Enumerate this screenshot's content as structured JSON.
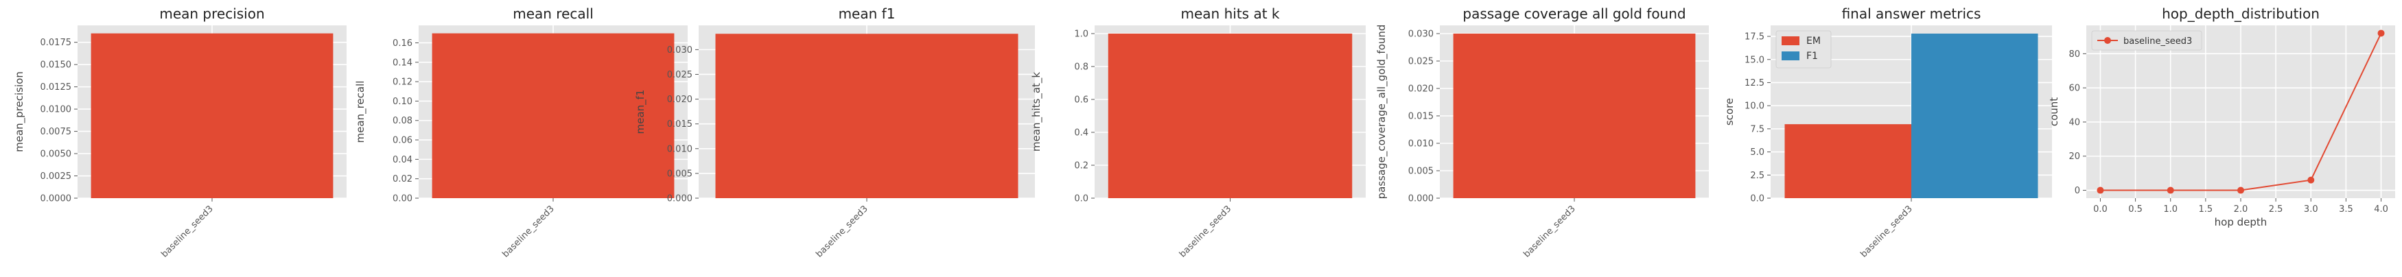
{
  "chart_data": [
    {
      "type": "bar",
      "title": "mean precision",
      "xlabel": "",
      "ylabel": "mean_precision",
      "categories": [
        "baseline_seed3"
      ],
      "values": [
        0.0185
      ],
      "ylim": [
        0,
        0.0194
      ],
      "yticks": [
        0.0,
        0.0025,
        0.005,
        0.0075,
        0.01,
        0.0125,
        0.015,
        0.0175
      ],
      "ytick_labels": [
        "0.0000",
        "0.0025",
        "0.0050",
        "0.0075",
        "0.0100",
        "0.0125",
        "0.0150",
        "0.0175"
      ],
      "colors": [
        "#E24A33"
      ],
      "grid": true
    },
    {
      "type": "bar",
      "title": "mean recall",
      "xlabel": "",
      "ylabel": "mean_recall",
      "categories": [
        "baseline_seed3"
      ],
      "values": [
        0.1698
      ],
      "ylim": [
        0,
        0.178
      ],
      "yticks": [
        0.0,
        0.02,
        0.04,
        0.06,
        0.08,
        0.1,
        0.12,
        0.14,
        0.16
      ],
      "ytick_labels": [
        "0.00",
        "0.02",
        "0.04",
        "0.06",
        "0.08",
        "0.10",
        "0.12",
        "0.14",
        "0.16"
      ],
      "colors": [
        "#E24A33"
      ],
      "grid": true
    },
    {
      "type": "bar",
      "title": "mean f1",
      "xlabel": "",
      "ylabel": "mean_f1",
      "categories": [
        "baseline_seed3"
      ],
      "values": [
        0.0332
      ],
      "ylim": [
        0,
        0.0349
      ],
      "yticks": [
        0.0,
        0.005,
        0.01,
        0.015,
        0.02,
        0.025,
        0.03
      ],
      "ytick_labels": [
        "0.000",
        "0.005",
        "0.010",
        "0.015",
        "0.020",
        "0.025",
        "0.030"
      ],
      "colors": [
        "#E24A33"
      ],
      "grid": true
    },
    {
      "type": "bar",
      "title": "mean hits at k",
      "xlabel": "",
      "ylabel": "mean_hits_at_k",
      "categories": [
        "baseline_seed3"
      ],
      "values": [
        1.0
      ],
      "ylim": [
        0,
        1.05
      ],
      "yticks": [
        0.0,
        0.2,
        0.4,
        0.6,
        0.8,
        1.0
      ],
      "ytick_labels": [
        "0.0",
        "0.2",
        "0.4",
        "0.6",
        "0.8",
        "1.0"
      ],
      "colors": [
        "#E24A33"
      ],
      "grid": true
    },
    {
      "type": "bar",
      "title": "passage coverage all gold found",
      "xlabel": "",
      "ylabel": "passage_coverage_all_gold_found",
      "categories": [
        "baseline_seed3"
      ],
      "values": [
        0.03
      ],
      "ylim": [
        0,
        0.0315
      ],
      "yticks": [
        0.0,
        0.005,
        0.01,
        0.015,
        0.02,
        0.025,
        0.03
      ],
      "ytick_labels": [
        "0.000",
        "0.005",
        "0.010",
        "0.015",
        "0.020",
        "0.025",
        "0.030"
      ],
      "colors": [
        "#E24A33"
      ],
      "grid": true
    },
    {
      "type": "bar",
      "title": "final answer metrics",
      "xlabel": "",
      "ylabel": "score",
      "categories": [
        "baseline_seed3"
      ],
      "series": [
        {
          "name": "EM",
          "values": [
            8.0
          ],
          "color": "#E24A33"
        },
        {
          "name": "F1",
          "values": [
            17.8
          ],
          "color": "#348ABD"
        }
      ],
      "ylim": [
        0,
        18.69
      ],
      "yticks": [
        0.0,
        2.5,
        5.0,
        7.5,
        10.0,
        12.5,
        15.0,
        17.5
      ],
      "ytick_labels": [
        "0.0",
        "2.5",
        "5.0",
        "7.5",
        "10.0",
        "12.5",
        "15.0",
        "17.5"
      ],
      "legend": "top-left",
      "grid": true
    },
    {
      "type": "line",
      "title": "hop_depth_distribution",
      "xlabel": "hop depth",
      "ylabel": "count",
      "series": [
        {
          "name": "baseline_seed3",
          "x": [
            0.0,
            1.0,
            2.0,
            3.0,
            4.0
          ],
          "y": [
            0,
            0,
            0,
            6,
            92
          ],
          "color": "#E24A33"
        }
      ],
      "xlim": [
        -0.2,
        4.2
      ],
      "ylim": [
        -4.6,
        96.6
      ],
      "xticks": [
        0.0,
        0.5,
        1.0,
        1.5,
        2.0,
        2.5,
        3.0,
        3.5,
        4.0
      ],
      "xtick_labels": [
        "0.0",
        "0.5",
        "1.0",
        "1.5",
        "2.0",
        "2.5",
        "3.0",
        "3.5",
        "4.0"
      ],
      "yticks": [
        0,
        20,
        40,
        60,
        80
      ],
      "ytick_labels": [
        "0",
        "20",
        "40",
        "60",
        "80"
      ],
      "legend": "top-left",
      "grid": true
    }
  ]
}
